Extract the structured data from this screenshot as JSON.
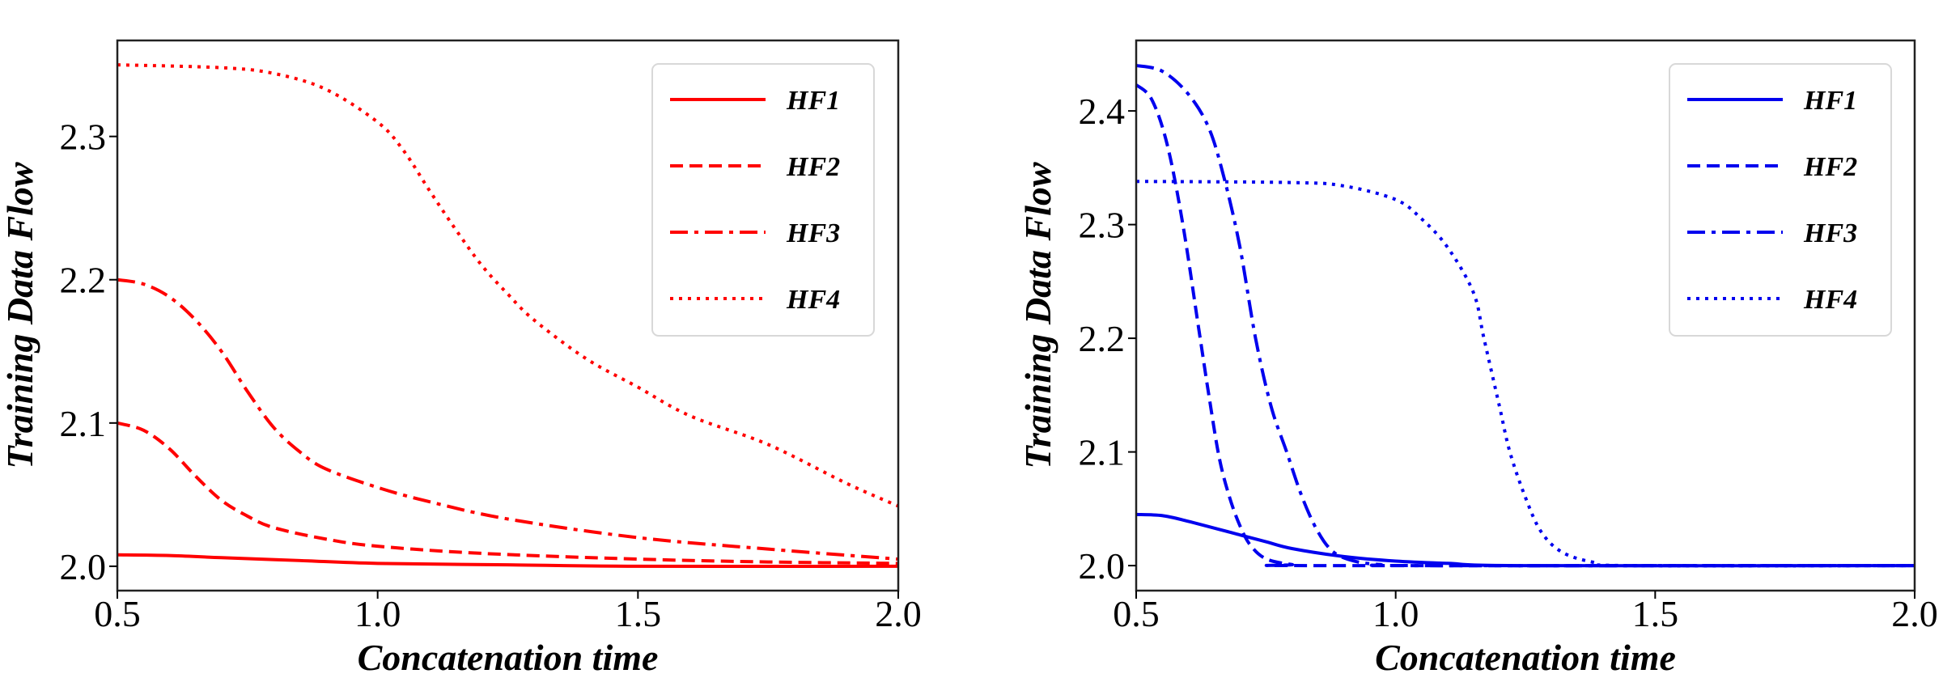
{
  "chart_data": [
    {
      "type": "line",
      "title": "",
      "xlabel": "Concatenation time",
      "ylabel": "Training Data Flow",
      "xlim": [
        0.5,
        2.0
      ],
      "ylim": [
        1.983,
        2.367
      ],
      "xticks": [
        "0.5",
        "1.0",
        "1.5",
        "2.0"
      ],
      "yticks": [
        "2.0",
        "2.1",
        "2.2",
        "2.3"
      ],
      "grid": false,
      "legend": "top-right",
      "color": "#ff0000",
      "series": [
        {
          "name": "HF1",
          "style": "solid",
          "x": [
            0.5,
            0.6,
            0.7,
            0.85,
            1.0,
            1.25,
            1.5,
            2.0
          ],
          "y": [
            2.008,
            2.0075,
            2.006,
            2.004,
            2.002,
            2.001,
            2.0,
            2.0
          ]
        },
        {
          "name": "HF2",
          "style": "dashed",
          "x": [
            0.5,
            0.55,
            0.6,
            0.65,
            0.7,
            0.75,
            0.8,
            0.9,
            1.0,
            1.2,
            1.5,
            1.75,
            2.0
          ],
          "y": [
            2.1,
            2.095,
            2.082,
            2.063,
            2.046,
            2.035,
            2.027,
            2.019,
            2.014,
            2.009,
            2.005,
            2.003,
            2.002
          ]
        },
        {
          "name": "HF3",
          "style": "dashdot",
          "x": [
            0.5,
            0.55,
            0.6,
            0.65,
            0.7,
            0.75,
            0.8,
            0.85,
            0.9,
            1.0,
            1.1,
            1.25,
            1.5,
            1.75,
            2.0
          ],
          "y": [
            2.2,
            2.197,
            2.188,
            2.172,
            2.15,
            2.122,
            2.097,
            2.08,
            2.068,
            2.055,
            2.045,
            2.033,
            2.02,
            2.012,
            2.005
          ]
        },
        {
          "name": "HF4",
          "style": "dotted",
          "x": [
            0.5,
            0.7,
            0.8,
            0.9,
            1.0,
            1.05,
            1.1,
            1.15,
            1.2,
            1.25,
            1.3,
            1.4,
            1.5,
            1.6,
            1.75,
            1.9,
            2.0
          ],
          "y": [
            2.35,
            2.348,
            2.344,
            2.333,
            2.31,
            2.29,
            2.262,
            2.235,
            2.21,
            2.19,
            2.172,
            2.145,
            2.125,
            2.105,
            2.085,
            2.058,
            2.042
          ]
        }
      ]
    },
    {
      "type": "line",
      "title": "",
      "xlabel": "Concatenation time",
      "ylabel": "Training Data Flow",
      "xlim": [
        0.5,
        2.0
      ],
      "ylim": [
        1.978,
        2.462
      ],
      "xticks": [
        "0.5",
        "1.0",
        "1.5",
        "2.0"
      ],
      "yticks": [
        "2.0",
        "2.1",
        "2.2",
        "2.3",
        "2.4"
      ],
      "grid": false,
      "legend": "top-right",
      "color": "#0000ee",
      "series": [
        {
          "name": "HF1",
          "style": "solid",
          "x": [
            0.5,
            0.55,
            0.6,
            0.7,
            0.75,
            0.8,
            0.9,
            1.0,
            1.1,
            1.25,
            2.0
          ],
          "y": [
            2.045,
            2.044,
            2.039,
            2.027,
            2.021,
            2.015,
            2.008,
            2.004,
            2.002,
            2.0,
            2.0
          ]
        },
        {
          "name": "HF2",
          "style": "dashed",
          "x": [
            0.5,
            0.53,
            0.56,
            0.59,
            0.62,
            0.64,
            0.66,
            0.68,
            0.7,
            0.72,
            0.75,
            0.8,
            0.85,
            2.0
          ],
          "y": [
            2.423,
            2.41,
            2.37,
            2.3,
            2.21,
            2.15,
            2.095,
            2.06,
            2.035,
            2.018,
            2.006,
            2.001,
            2.0,
            2.0
          ]
        },
        {
          "name": "HF3",
          "style": "dashdot",
          "x": [
            0.5,
            0.55,
            0.6,
            0.64,
            0.67,
            0.7,
            0.73,
            0.76,
            0.79,
            0.82,
            0.85,
            0.88,
            0.92,
            0.97,
            1.05,
            2.0
          ],
          "y": [
            2.44,
            2.435,
            2.415,
            2.385,
            2.34,
            2.28,
            2.2,
            2.14,
            2.1,
            2.06,
            2.03,
            2.012,
            2.004,
            2.001,
            2.0,
            2.0
          ]
        },
        {
          "name": "HF4",
          "style": "dotted",
          "x": [
            0.5,
            0.8,
            0.9,
            1.0,
            1.05,
            1.1,
            1.15,
            1.17,
            1.2,
            1.22,
            1.25,
            1.28,
            1.32,
            1.38,
            1.45,
            2.0
          ],
          "y": [
            2.338,
            2.337,
            2.334,
            2.322,
            2.305,
            2.28,
            2.24,
            2.2,
            2.14,
            2.1,
            2.06,
            2.03,
            2.012,
            2.003,
            2.0,
            2.0
          ]
        }
      ]
    }
  ]
}
